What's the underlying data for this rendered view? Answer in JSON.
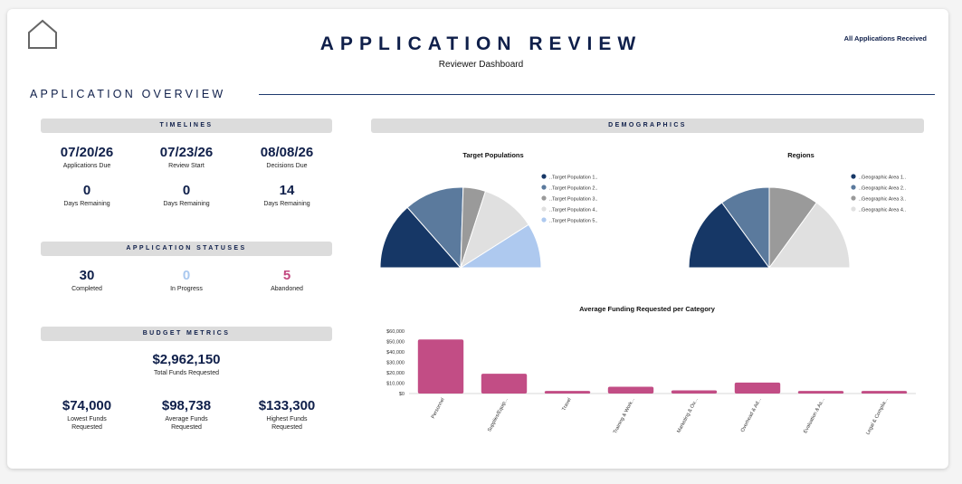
{
  "header": {
    "title": "APPLICATION REVIEW",
    "subtitle": "Reviewer Dashboard",
    "filter_label": "All Applications Received"
  },
  "overview": {
    "title": "APPLICATION OVERVIEW"
  },
  "timelines": {
    "title": "TIMELINES",
    "dates": [
      {
        "value": "07/20/26",
        "label": "Applications Due"
      },
      {
        "value": "07/23/26",
        "label": "Review Start"
      },
      {
        "value": "08/08/26",
        "label": "Decisions Due"
      }
    ],
    "remaining": [
      {
        "value": "0",
        "label": "Days Remaining"
      },
      {
        "value": "0",
        "label": "Days Remaining"
      },
      {
        "value": "14",
        "label": "Days Remaining"
      }
    ]
  },
  "statuses": {
    "title": "APPLICATION STATUSES",
    "items": [
      {
        "value": "30",
        "label": "Completed",
        "color": "#0f1f4a"
      },
      {
        "value": "0",
        "label": "In Progress",
        "color": "#a9c8ef"
      },
      {
        "value": "5",
        "label": "Abandoned",
        "color": "#c2477f"
      }
    ]
  },
  "budget": {
    "title": "BUDGET METRICS",
    "total": {
      "value": "$2,962,150",
      "label": "Total Funds Requested"
    },
    "items": [
      {
        "value": "$74,000",
        "label": "Lowest Funds Requested"
      },
      {
        "value": "$98,738",
        "label": "Average Funds Requested"
      },
      {
        "value": "$133,300",
        "label": "Highest Funds Requested"
      }
    ]
  },
  "demographics": {
    "title": "DEMOGRAPHICS"
  },
  "chart_data": [
    {
      "type": "pie",
      "title": "Target Populations",
      "labels": [
        "..Target Population 1..",
        "..Target Population 2..",
        "..Target Population 3..",
        "..Target Population 4..",
        "..Target Population 5.."
      ],
      "values": [
        27,
        24,
        9,
        22,
        18
      ],
      "colors": [
        "#163766",
        "#5b7a9d",
        "#9a9a9a",
        "#e0e0e0",
        "#aec9ef"
      ],
      "legend": "right"
    },
    {
      "type": "pie",
      "title": "Regions",
      "labels": [
        "..Geographic Area 1..",
        "..Geographic Area 2..",
        "..Geographic Area 3..",
        "..Geographic Area 4.."
      ],
      "values": [
        30,
        20,
        20,
        30
      ],
      "colors": [
        "#163766",
        "#5b7a9d",
        "#9a9a9a",
        "#e0e0e0"
      ],
      "legend": "right"
    },
    {
      "type": "bar",
      "title": "Average Funding Requested per Category",
      "categories": [
        "Personnel",
        "Supplies/Equip...",
        "Travel",
        "Training & Work...",
        "Marketing & Ou...",
        "Overhead & Ad...",
        "Evaluation & As...",
        "Legal & Complia..."
      ],
      "values": [
        52000,
        19000,
        2500,
        6500,
        3000,
        10500,
        2500,
        2500
      ],
      "y_ticks": [
        "$0",
        "$10,000",
        "$20,000",
        "$30,000",
        "$40,000",
        "$50,000",
        "$60,000"
      ],
      "ylim": [
        0,
        60000
      ],
      "color": "#c24d85"
    }
  ]
}
